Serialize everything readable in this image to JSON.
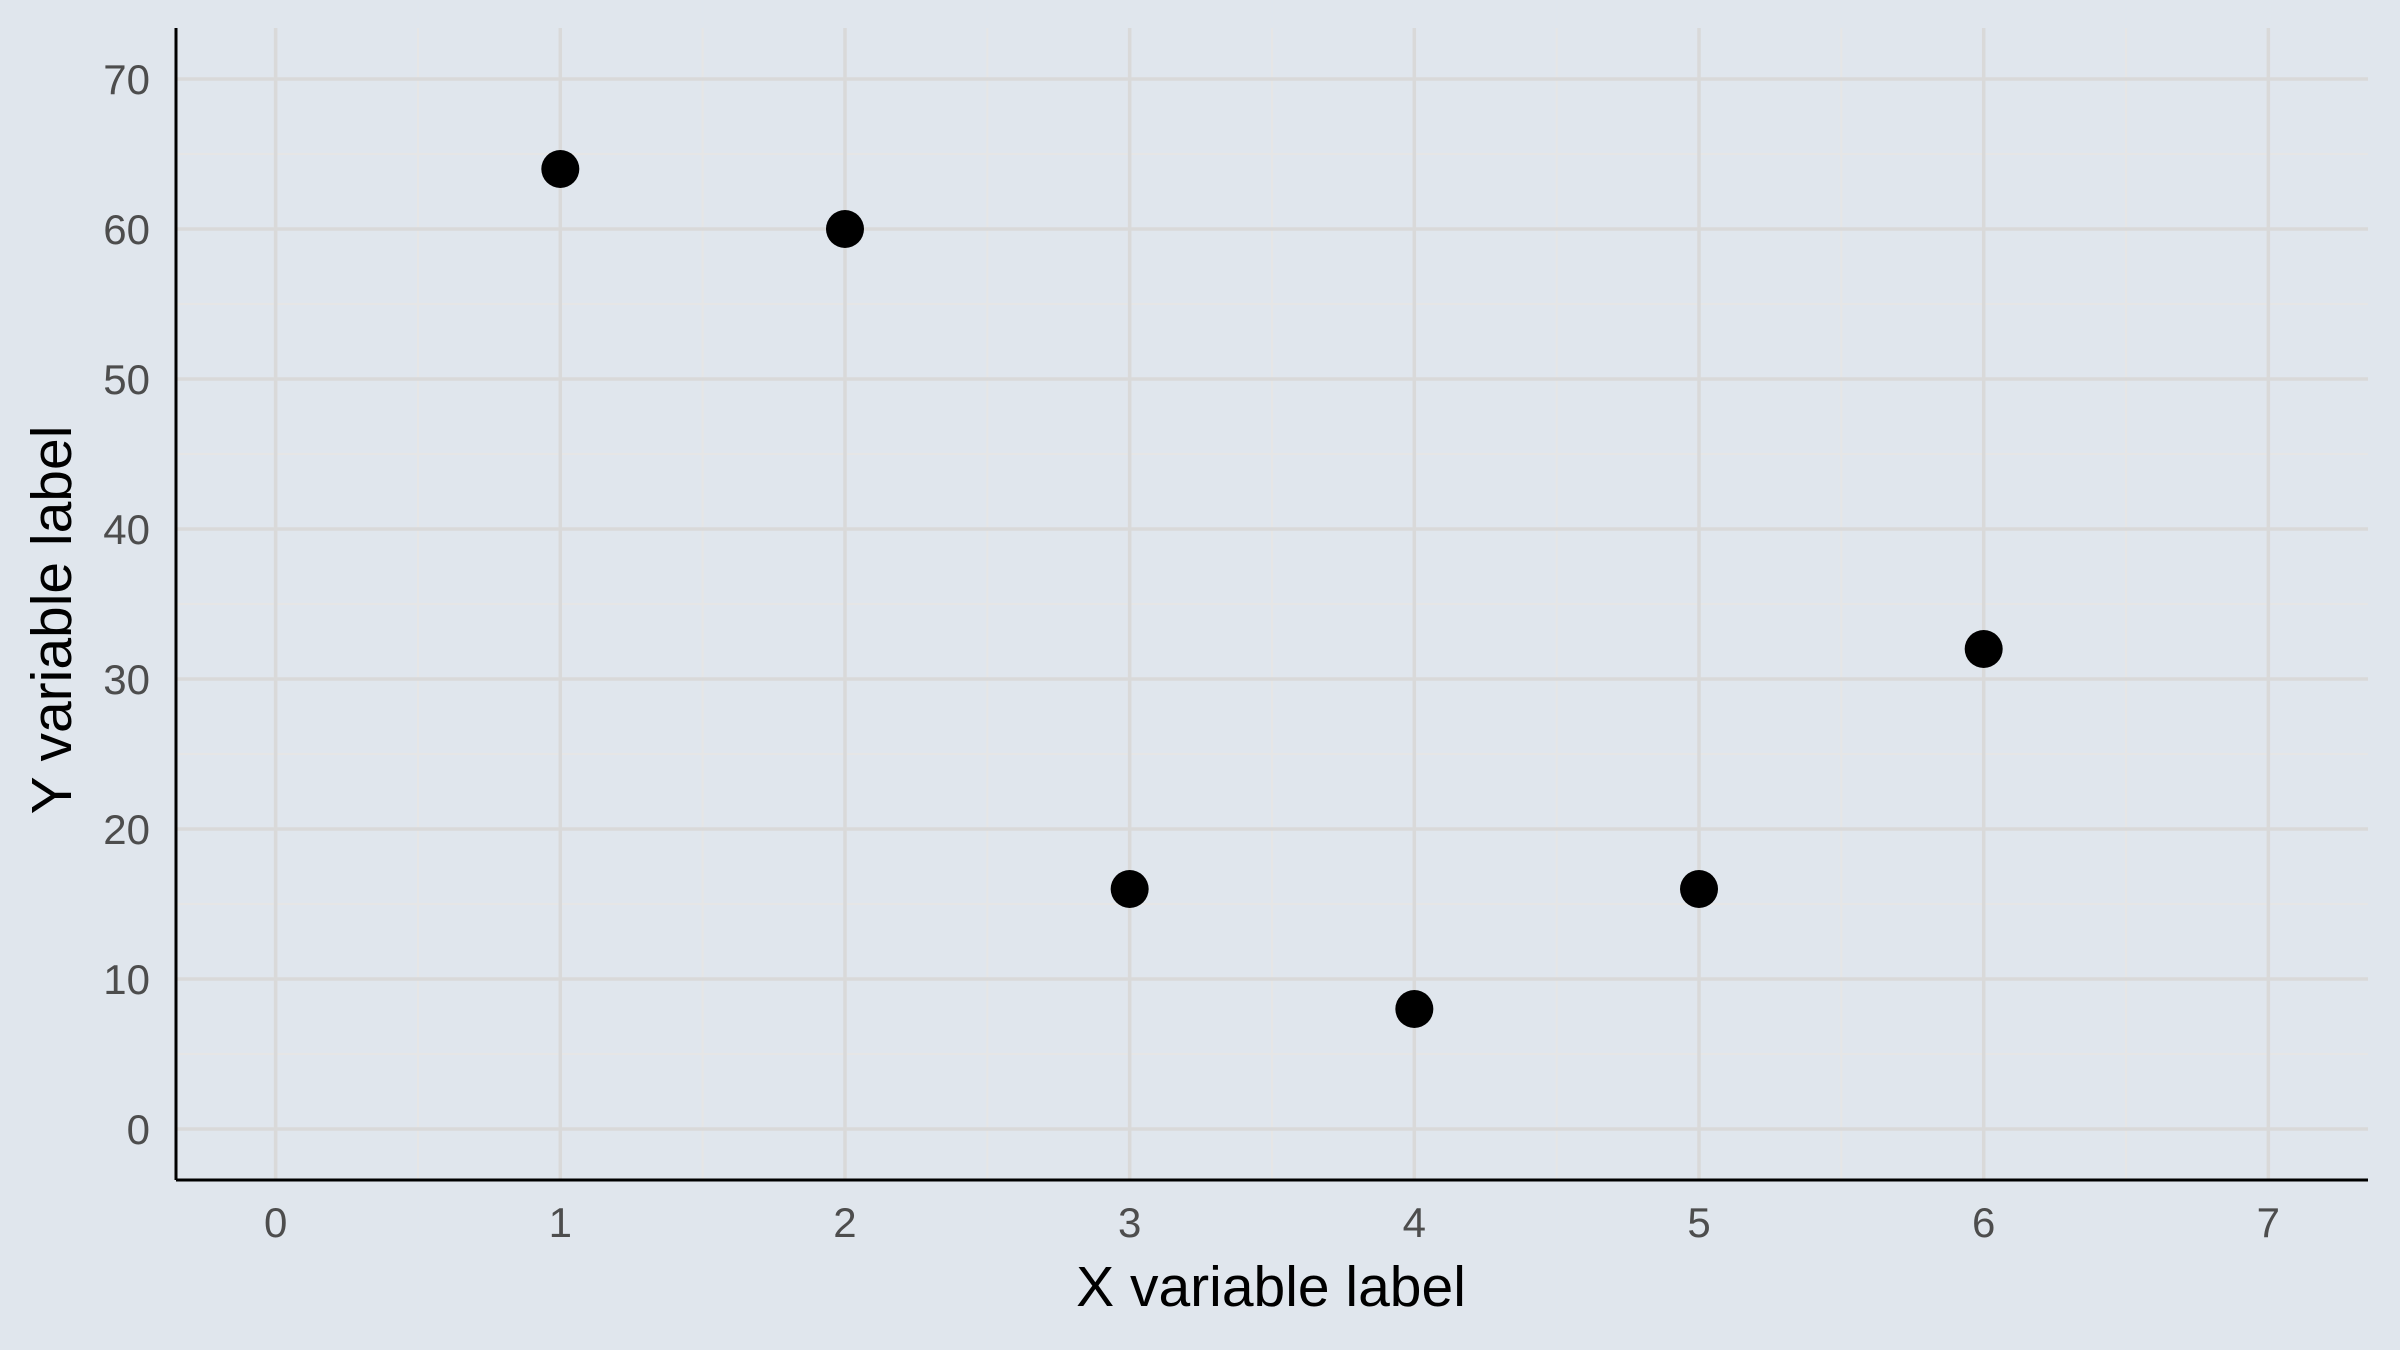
{
  "chart_data": {
    "type": "scatter",
    "title": "",
    "xlabel": "X variable label",
    "ylabel": "Y variable label",
    "xlim": [
      -0.35,
      7.35
    ],
    "ylim": [
      -3.4,
      73.4
    ],
    "x_ticks": [
      0,
      1,
      2,
      3,
      4,
      5,
      6,
      7
    ],
    "y_ticks": [
      0,
      10,
      20,
      30,
      40,
      50,
      60,
      70
    ],
    "grid": true,
    "legend": "none",
    "series": [
      {
        "x": [
          1,
          2,
          3,
          4,
          5,
          6
        ],
        "y": [
          64,
          60,
          16,
          8,
          16,
          32
        ],
        "color": "#000000"
      }
    ]
  },
  "style": {
    "background": "#e0e6ed",
    "grid_major": "#d9d9d9",
    "grid_minor": "#e6e6e6",
    "axis_line": "#000000"
  }
}
